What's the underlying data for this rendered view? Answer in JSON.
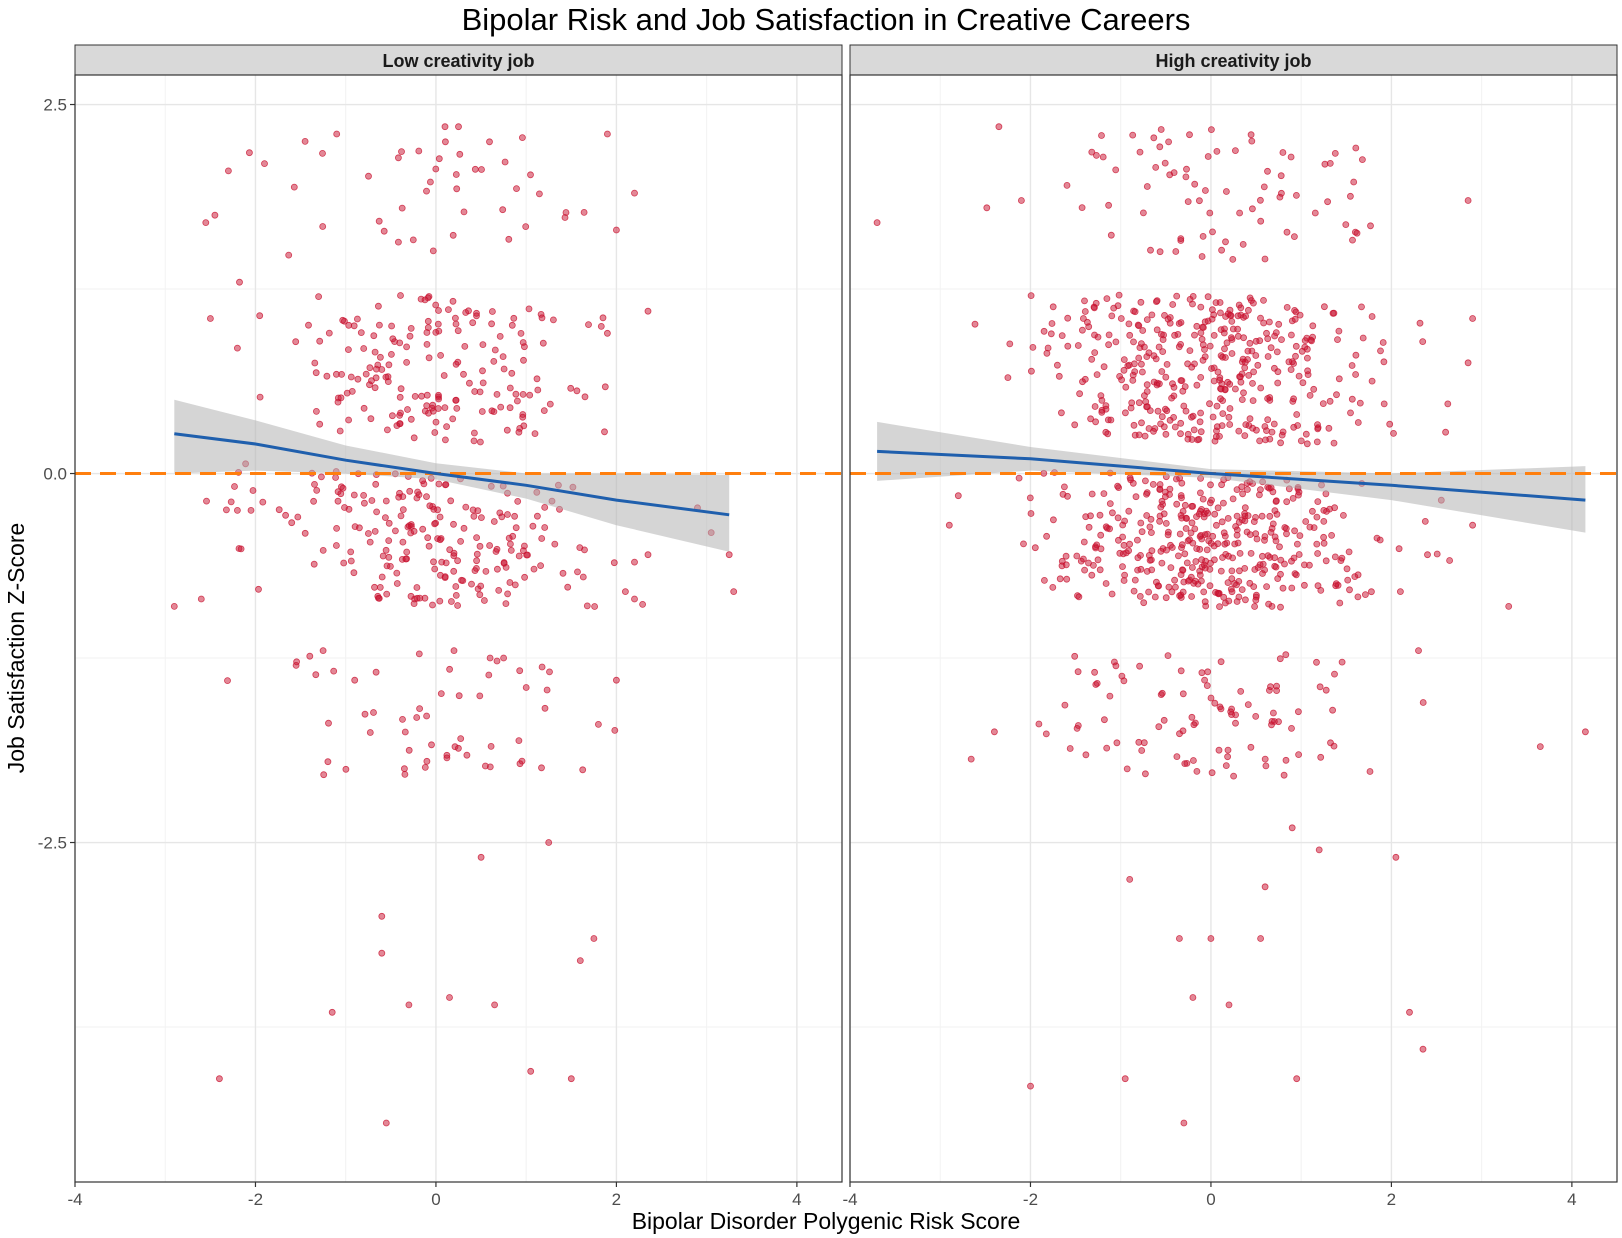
{
  "chart_data": {
    "type": "scatter",
    "title": "Bipolar Risk and Job Satisfaction in Creative Careers",
    "xlabel": "Bipolar Disorder Polygenic Risk Score",
    "ylabel": "Job Satisfaction Z-Score",
    "xlim": [
      -4.0,
      4.5
    ],
    "ylim": [
      -4.8,
      2.7
    ],
    "x_ticks": [
      -4,
      -2,
      0,
      2,
      4
    ],
    "x_tick_labels": [
      "-4",
      "-2",
      "0",
      "2",
      "4"
    ],
    "y_ticks": [
      2.5,
      0.0,
      -2.5
    ],
    "y_tick_labels": [
      "2.5",
      "0.0",
      "-2.5"
    ],
    "grid": true,
    "reference_line": {
      "y": 0,
      "style": "dashed",
      "color": "#ff7f0e"
    },
    "point_color": "#c8102e",
    "fit_color": "#1f5fad",
    "band_color": "#b3b3b3",
    "panels": [
      {
        "label": "Low creativity job",
        "n_points": 540,
        "x_range": [
          -2.95,
          3.3
        ],
        "fit": {
          "x": [
            -2.9,
            -2.0,
            -1.0,
            0.0,
            1.0,
            2.0,
            3.25
          ],
          "y": [
            0.27,
            0.2,
            0.09,
            0.0,
            -0.08,
            -0.18,
            -0.28
          ],
          "ci_upper": [
            0.5,
            0.36,
            0.19,
            0.07,
            0.0,
            0.0,
            -0.01
          ],
          "ci_lower": [
            0.0,
            0.02,
            0.0,
            -0.04,
            -0.17,
            -0.35,
            -0.53
          ]
        },
        "points": [
          {
            "x": -2.4,
            "y": -4.1
          },
          {
            "x": -0.55,
            "y": -4.4
          },
          {
            "x": -1.15,
            "y": -3.65
          },
          {
            "x": 0.65,
            "y": -3.6
          },
          {
            "x": 0.15,
            "y": -3.55
          },
          {
            "x": -0.3,
            "y": -3.6
          },
          {
            "x": 1.05,
            "y": -4.05
          },
          {
            "x": 1.5,
            "y": -4.1
          },
          {
            "x": -0.6,
            "y": -3.25
          },
          {
            "x": 1.6,
            "y": -3.3
          },
          {
            "x": 1.75,
            "y": -3.15
          },
          {
            "x": -0.6,
            "y": -3.0
          },
          {
            "x": 0.5,
            "y": -2.6
          },
          {
            "x": 1.25,
            "y": -2.5
          },
          {
            "x": -2.9,
            "y": -0.9
          },
          {
            "x": -2.6,
            "y": -0.85
          },
          {
            "x": 3.3,
            "y": -0.8
          },
          {
            "x": 3.25,
            "y": -0.55
          },
          {
            "x": 3.05,
            "y": -0.4
          },
          {
            "x": -2.55,
            "y": 1.7
          },
          {
            "x": -2.45,
            "y": 1.75
          },
          {
            "x": -2.3,
            "y": 2.05
          },
          {
            "x": -1.9,
            "y": 2.1
          },
          {
            "x": -1.45,
            "y": 2.25
          },
          {
            "x": -1.1,
            "y": 2.3
          },
          {
            "x": 0.1,
            "y": 2.35
          },
          {
            "x": 0.25,
            "y": 2.35
          },
          {
            "x": 1.9,
            "y": 2.3
          },
          {
            "x": 2.2,
            "y": 1.9
          },
          {
            "x": 2.0,
            "y": 1.65
          },
          {
            "x": -2.5,
            "y": 1.05
          },
          {
            "x": -2.2,
            "y": 0.85
          },
          {
            "x": 2.35,
            "y": 1.1
          },
          {
            "x": 1.9,
            "y": 0.95
          },
          {
            "x": -2.2,
            "y": -0.25
          },
          {
            "x": -2.05,
            "y": -0.25
          },
          {
            "x": 2.1,
            "y": -0.8
          },
          {
            "x": 2.2,
            "y": -0.85
          },
          {
            "x": 2.35,
            "y": -0.55
          },
          {
            "x": 2.2,
            "y": -0.6
          },
          {
            "x": -1.55,
            "y": -1.3
          },
          {
            "x": -1.25,
            "y": -1.2
          },
          {
            "x": -0.9,
            "y": -1.4
          },
          {
            "x": 1.0,
            "y": -1.45
          },
          {
            "x": 2.0,
            "y": -1.4
          },
          {
            "x": 1.8,
            "y": -1.7
          },
          {
            "x": -0.35,
            "y": -2.0
          },
          {
            "x": -0.1,
            "y": -1.95
          },
          {
            "x": 0.6,
            "y": -1.25
          },
          {
            "x": 0.2,
            "y": -1.2
          },
          {
            "x": 0.75,
            "y": -1.25
          }
        ]
      },
      {
        "label": "High creativity job",
        "n_points": 1005,
        "x_range": [
          -3.7,
          4.15
        ],
        "fit": {
          "x": [
            -3.7,
            -2.0,
            0.0,
            2.0,
            4.15
          ],
          "y": [
            0.15,
            0.1,
            0.0,
            -0.08,
            -0.18
          ],
          "ci_upper": [
            0.35,
            0.18,
            0.03,
            0.0,
            0.05
          ],
          "ci_lower": [
            -0.05,
            0.02,
            -0.03,
            -0.18,
            -0.4
          ]
        },
        "points": [
          {
            "x": -3.7,
            "y": 1.7
          },
          {
            "x": -2.4,
            "y": -1.75
          },
          {
            "x": -2.0,
            "y": -4.15
          },
          {
            "x": -0.95,
            "y": -4.1
          },
          {
            "x": 0.95,
            "y": -4.1
          },
          {
            "x": -0.3,
            "y": -4.4
          },
          {
            "x": 2.2,
            "y": -3.65
          },
          {
            "x": 2.35,
            "y": -3.9
          },
          {
            "x": 3.65,
            "y": -1.85
          },
          {
            "x": 4.15,
            "y": -1.75
          },
          {
            "x": 3.3,
            "y": -0.9
          },
          {
            "x": 2.85,
            "y": 1.85
          },
          {
            "x": 2.9,
            "y": 1.05
          },
          {
            "x": 2.85,
            "y": 0.75
          },
          {
            "x": -2.35,
            "y": 2.35
          },
          {
            "x": -0.2,
            "y": -3.55
          },
          {
            "x": 0.2,
            "y": -3.6
          },
          {
            "x": -0.35,
            "y": -3.15
          },
          {
            "x": 0.0,
            "y": -3.15
          },
          {
            "x": 0.55,
            "y": -3.15
          },
          {
            "x": -0.9,
            "y": -2.75
          },
          {
            "x": 0.6,
            "y": -2.8
          },
          {
            "x": 0.9,
            "y": -2.4
          },
          {
            "x": 1.2,
            "y": -2.55
          },
          {
            "x": 2.05,
            "y": -2.6
          },
          {
            "x": 2.3,
            "y": -1.2
          },
          {
            "x": 2.1,
            "y": -0.8
          },
          {
            "x": 2.4,
            "y": -0.55
          },
          {
            "x": 2.9,
            "y": -0.35
          },
          {
            "x": -2.8,
            "y": -0.15
          },
          {
            "x": -2.9,
            "y": -0.35
          },
          {
            "x": -2.1,
            "y": 1.85
          },
          {
            "x": -2.25,
            "y": 0.65
          }
        ]
      }
    ]
  }
}
